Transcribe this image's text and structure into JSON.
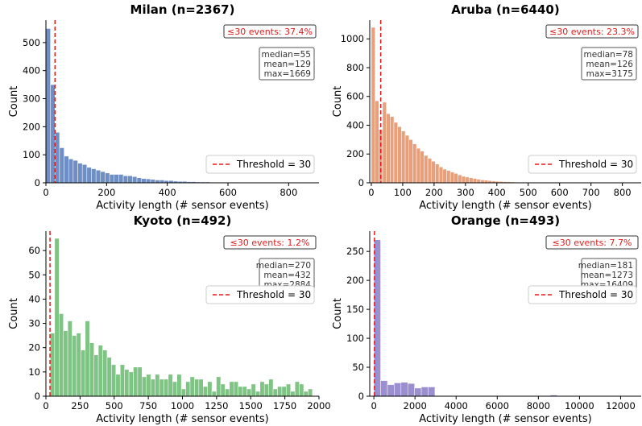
{
  "chart_data": [
    {
      "type": "bar",
      "title": "Milan  (n=2367)",
      "xlabel": "Activity length (# sensor events)",
      "ylabel": "Count",
      "xlim": [
        0,
        900
      ],
      "ylim": [
        0,
        580
      ],
      "xticks": [
        0,
        200,
        400,
        600,
        800
      ],
      "yticks": [
        0,
        100,
        200,
        300,
        400,
        500
      ],
      "color": "#6f8fc4",
      "bin_width": 15,
      "bin_start": 0,
      "values": [
        550,
        350,
        180,
        125,
        95,
        85,
        80,
        70,
        65,
        55,
        50,
        45,
        40,
        35,
        30,
        30,
        30,
        25,
        25,
        22,
        18,
        15,
        14,
        12,
        10,
        10,
        8,
        8,
        6,
        5,
        5,
        4,
        4,
        3,
        3,
        3,
        2,
        2,
        2,
        2,
        2,
        2,
        1,
        1,
        1,
        1,
        1,
        1,
        1,
        1,
        1,
        1,
        1,
        1,
        1,
        1,
        1,
        1
      ],
      "threshold": 30,
      "legend": "Threshold = 30",
      "annotation": "≤30 events: 37.4%",
      "stats": [
        "median=55",
        "mean=129",
        "max=1669"
      ]
    },
    {
      "type": "bar",
      "title": "Aruba  (n=6440)",
      "xlabel": "Activity length (# sensor events)",
      "ylabel": "Count",
      "xlim": [
        -5,
        860
      ],
      "ylim": [
        0,
        1130
      ],
      "xticks": [
        0,
        100,
        200,
        300,
        400,
        500,
        600,
        700,
        800
      ],
      "yticks": [
        0,
        200,
        400,
        600,
        800,
        1000
      ],
      "color": "#e8a07c",
      "bin_width": 12,
      "bin_start": 0,
      "values": [
        1080,
        570,
        370,
        560,
        480,
        460,
        420,
        390,
        360,
        330,
        300,
        270,
        240,
        220,
        190,
        170,
        150,
        130,
        110,
        95,
        85,
        75,
        65,
        55,
        45,
        40,
        35,
        30,
        25,
        20,
        18,
        15,
        12,
        10,
        9,
        8,
        7,
        6,
        5,
        4,
        4,
        3,
        3,
        3,
        2,
        2,
        2,
        2,
        1,
        1,
        1,
        1,
        1,
        1,
        1,
        1,
        1,
        1,
        1,
        1,
        1,
        1,
        1,
        1,
        1,
        1,
        1,
        1,
        1,
        1
      ],
      "threshold": 30,
      "legend": "Threshold = 30",
      "annotation": "≤30 events: 23.3%",
      "stats": [
        "median=78",
        "mean=126",
        "max=3175"
      ]
    },
    {
      "type": "bar",
      "title": "Kyoto  (n=492)",
      "xlabel": "Activity length (# sensor events)",
      "ylabel": "Count",
      "xlim": [
        0,
        2000
      ],
      "ylim": [
        0,
        68
      ],
      "xticks": [
        0,
        250,
        500,
        750,
        1000,
        1250,
        1500,
        1750,
        2000
      ],
      "yticks": [
        0,
        10,
        20,
        30,
        40,
        50,
        60
      ],
      "color": "#80c485",
      "bin_width": 32,
      "bin_start": 0,
      "values": [
        0,
        26,
        65,
        34,
        27,
        31,
        25,
        26,
        19,
        31,
        22,
        17,
        21,
        19,
        16,
        13,
        9,
        13,
        11,
        10,
        12,
        12,
        8,
        9,
        7,
        9,
        7,
        7,
        9,
        6,
        9,
        3,
        6,
        8,
        7,
        7,
        4,
        6,
        2,
        8,
        5,
        3,
        6,
        6,
        4,
        4,
        3,
        5,
        2,
        6,
        5,
        7,
        3,
        4,
        4,
        5,
        2,
        6,
        5,
        2,
        3
      ],
      "threshold": 30,
      "legend": "Threshold = 30",
      "annotation": "≤30 events: 1.2%",
      "stats": [
        "median=270",
        "mean=432",
        "max=2884"
      ]
    },
    {
      "type": "bar",
      "title": "Orange  (n=493)",
      "xlabel": "Activity length (# sensor events)",
      "ylabel": "Count",
      "xlim": [
        -200,
        13000
      ],
      "ylim": [
        0,
        285
      ],
      "xticks": [
        0,
        2000,
        4000,
        6000,
        8000,
        10000,
        12000
      ],
      "yticks": [
        0,
        50,
        100,
        150,
        200,
        250
      ],
      "color": "#9b8fcf",
      "bin_width": 330,
      "bin_start": 0,
      "values": [
        270,
        27,
        20,
        23,
        24,
        22,
        14,
        16,
        16,
        0,
        0,
        0,
        0,
        0,
        0,
        0,
        0,
        0,
        0,
        0,
        0,
        0,
        0,
        0,
        0,
        0,
        2,
        0,
        0,
        0,
        0,
        0,
        0,
        0,
        0,
        0,
        0,
        0,
        0,
        0
      ],
      "threshold": 30,
      "legend": "Threshold = 30",
      "annotation": "≤30 events: 7.7%",
      "stats": [
        "median=181",
        "mean=1273",
        "max=16409"
      ]
    }
  ],
  "colors": {
    "threshold_line": "#e31a1c",
    "annotation_text": "#e31a1c",
    "axis": "#000000"
  }
}
